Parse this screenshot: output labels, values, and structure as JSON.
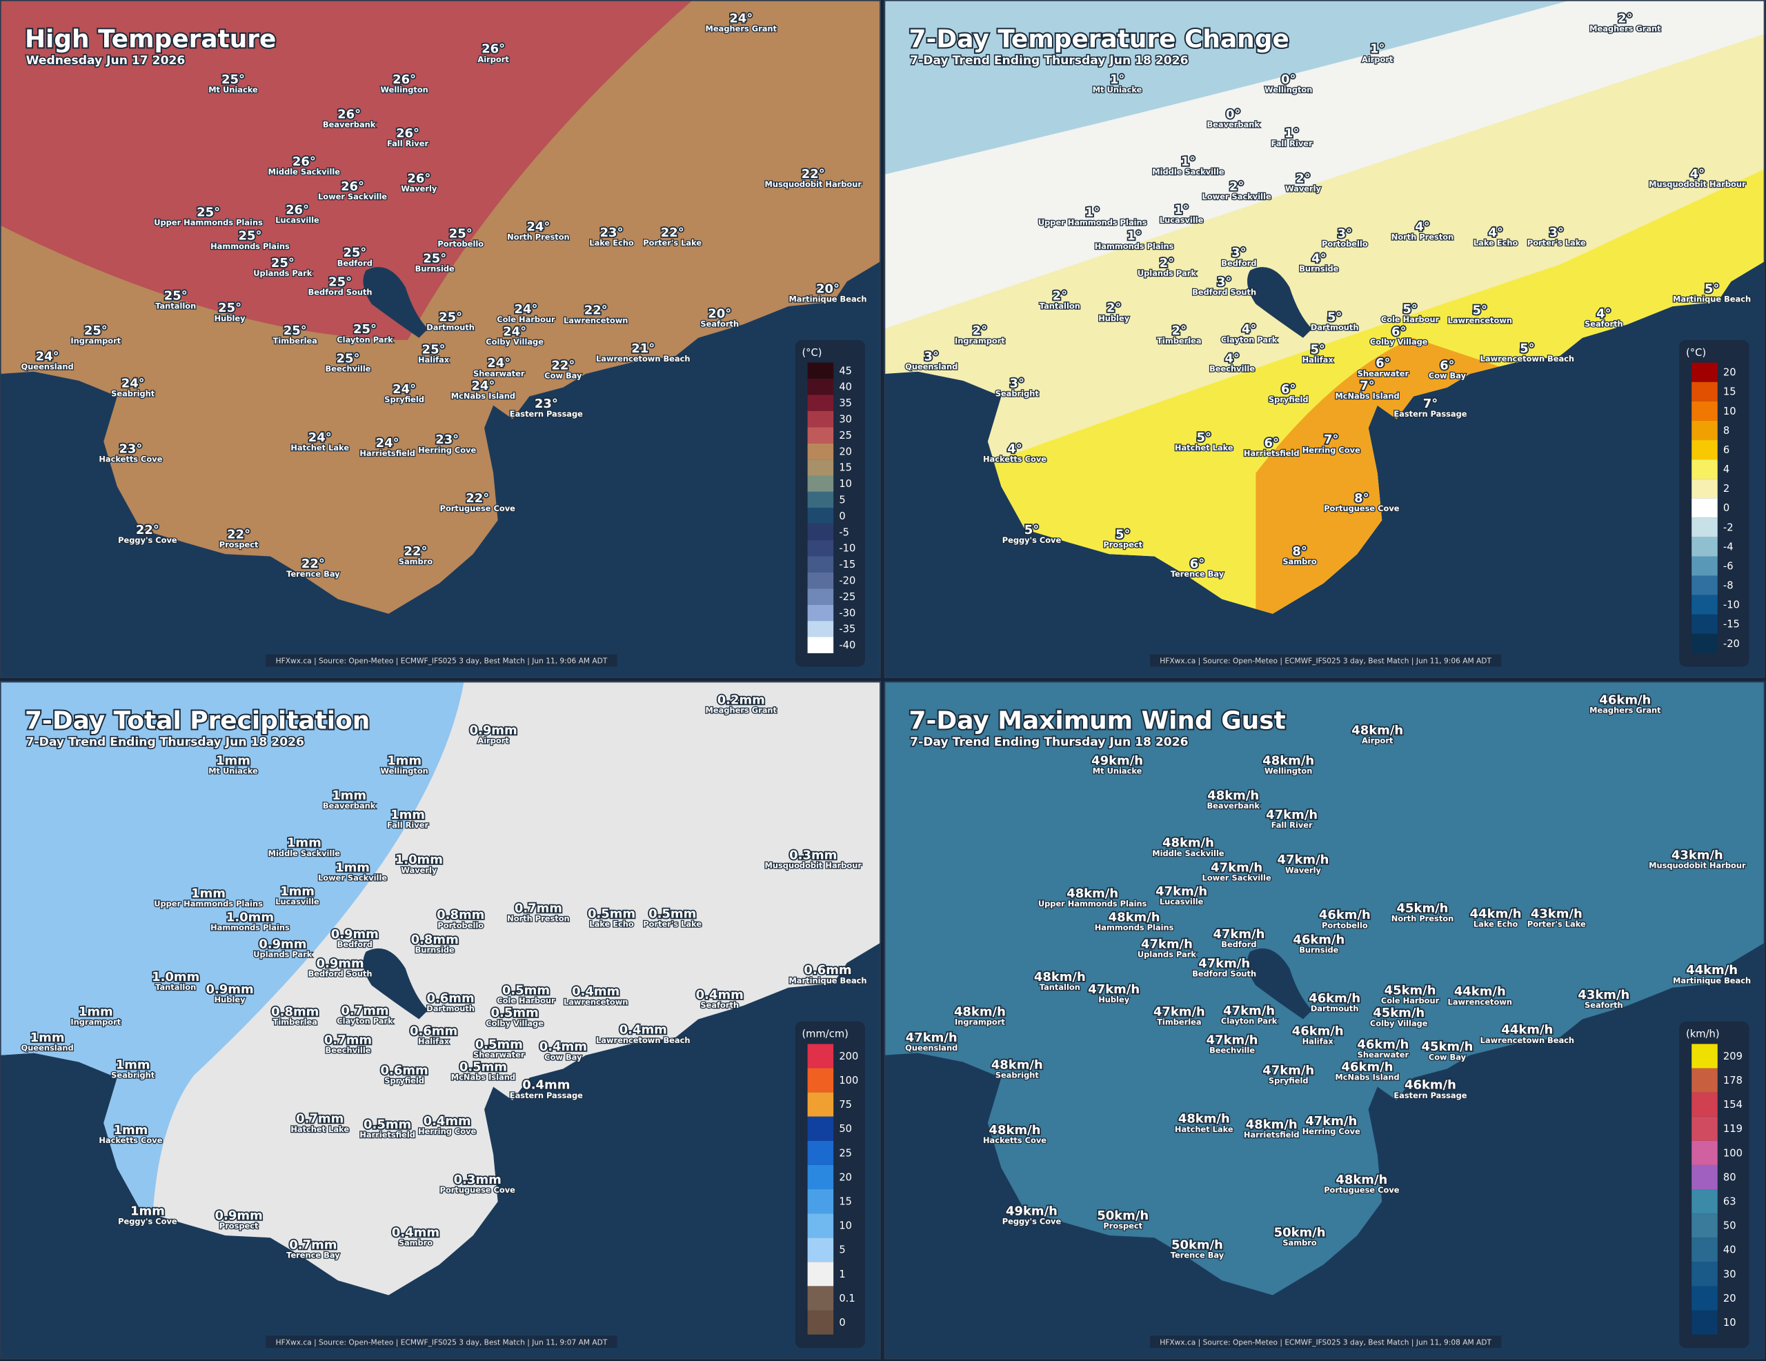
{
  "places": [
    "Meaghers Grant",
    "Airport",
    "Mt Uniacke",
    "Wellington",
    "Beaverbank",
    "Fall River",
    "Middle Sackville",
    "Waverly",
    "Lower Sackville",
    "Musquodobit Harbour",
    "Upper Hammonds Plains",
    "Lucasville",
    "Hammonds Plains",
    "Portobello",
    "North Preston",
    "Lake Echo",
    "Porter's Lake",
    "Uplands Park",
    "Bedford",
    "Burnside",
    "Bedford South",
    "Martinique Beach",
    "Tantallon",
    "Hubley",
    "Dartmouth",
    "Cole Harbour",
    "Colby Village",
    "Lawrencetown",
    "Seaforth",
    "Ingramport",
    "Timberlea",
    "Clayton Park",
    "Queensland",
    "Halifax",
    "Beechville",
    "Lawrencetown Beach",
    "Shearwater",
    "Cow Bay",
    "Seabright",
    "Spryfield",
    "McNabs Island",
    "Eastern Passage",
    "Hatchet Lake",
    "Harrietsfield",
    "Herring Cove",
    "Hacketts Cove",
    "Portuguese Cove",
    "Peggy's Cove",
    "Prospect",
    "Sambro",
    "Terence Bay"
  ],
  "panels": [
    {
      "title": "High Temperature",
      "subtitle": "Wednesday Jun 17 2026",
      "land_color": "#b8875a",
      "values": [
        "24°",
        "26°",
        "25°",
        "26°",
        "26°",
        "26°",
        "26°",
        "26°",
        "26°",
        "22°",
        "25°",
        "26°",
        "25°",
        "25°",
        "24°",
        "23°",
        "22°",
        "25°",
        "25°",
        "25°",
        "25°",
        "20°",
        "25°",
        "25°",
        "25°",
        "24°",
        "24°",
        "22°",
        "20°",
        "25°",
        "25°",
        "25°",
        "24°",
        "25°",
        "25°",
        "21°",
        "24°",
        "22°",
        "24°",
        "24°",
        "24°",
        "23°",
        "24°",
        "24°",
        "23°",
        "23°",
        "22°",
        "22°",
        "22°",
        "22°",
        "22°"
      ],
      "legend": {
        "unit": "(°C)",
        "ticks": [
          45,
          40,
          35,
          30,
          25,
          20,
          15,
          10,
          5,
          0,
          -5,
          -10,
          -15,
          -20,
          -25,
          -30,
          -35,
          -40
        ],
        "colors": [
          "#2a0a10",
          "#4a0f1e",
          "#7a1a30",
          "#a83a48",
          "#c05a5a",
          "#b8885a",
          "#a89068",
          "#7a9080",
          "#3a6a80",
          "#1e4a70",
          "#2a3a6a",
          "#34467a",
          "#445a8a",
          "#5a6e9e",
          "#7088b8",
          "#90a8d8",
          "#c0d8f0",
          "#ffffff"
        ]
      },
      "footer": "HFXwx.ca | Source: Open-Meteo | ECMWF_IFS025 3 day, Best Match | Jun 11, 9:06 AM ADT"
    },
    {
      "title": "7-Day Temperature Change",
      "subtitle": "7-Day Trend Ending Thursday Jun 18 2026",
      "land_color": "#f4eeb0",
      "values": [
        "2°",
        "1°",
        "1°",
        "0°",
        "0°",
        "1°",
        "1°",
        "2°",
        "2°",
        "4°",
        "1°",
        "1°",
        "1°",
        "3°",
        "4°",
        "4°",
        "3°",
        "2°",
        "3°",
        "4°",
        "3°",
        "5°",
        "2°",
        "2°",
        "5°",
        "5°",
        "6°",
        "5°",
        "4°",
        "2°",
        "2°",
        "4°",
        "3°",
        "5°",
        "4°",
        "5°",
        "6°",
        "6°",
        "3°",
        "6°",
        "7°",
        "7°",
        "5°",
        "6°",
        "7°",
        "4°",
        "8°",
        "5°",
        "5°",
        "8°",
        "6°"
      ],
      "legend": {
        "unit": "(°C)",
        "ticks": [
          20,
          15,
          10,
          8,
          6,
          4,
          2,
          0,
          -2,
          -4,
          -6,
          -8,
          -10,
          -15,
          -20
        ],
        "colors": [
          "#a00000",
          "#e05000",
          "#f07800",
          "#f0a000",
          "#f8c800",
          "#f8f060",
          "#f8f0b0",
          "#ffffff",
          "#c8e0e8",
          "#90c0d0",
          "#5a98b8",
          "#3070a0",
          "#105890",
          "#0a4070",
          "#0a3050"
        ]
      },
      "footer": "HFXwx.ca | Source: Open-Meteo | ECMWF_IFS025 3 day, Best Match | Jun 11, 9:06 AM ADT"
    },
    {
      "title": "7-Day Total Precipitation",
      "subtitle": "7-Day Trend Ending Thursday Jun 18 2026",
      "land_color": "#e6e6e6",
      "values": [
        "0.2mm",
        "0.9mm",
        "1mm",
        "1mm",
        "1mm",
        "1mm",
        "1mm",
        "1.0mm",
        "1mm",
        "0.3mm",
        "1mm",
        "1mm",
        "1.0mm",
        "0.8mm",
        "0.7mm",
        "0.5mm",
        "0.5mm",
        "0.9mm",
        "0.9mm",
        "0.8mm",
        "0.9mm",
        "0.6mm",
        "1.0mm",
        "0.9mm",
        "0.6mm",
        "0.5mm",
        "0.5mm",
        "0.4mm",
        "0.4mm",
        "1mm",
        "0.8mm",
        "0.7mm",
        "1mm",
        "0.6mm",
        "0.7mm",
        "0.4mm",
        "0.5mm",
        "0.4mm",
        "1mm",
        "0.6mm",
        "0.5mm",
        "0.4mm",
        "0.7mm",
        "0.5mm",
        "0.4mm",
        "1mm",
        "0.3mm",
        "1mm",
        "0.9mm",
        "0.4mm",
        "0.7mm"
      ],
      "legend": {
        "unit": "(mm/cm)",
        "ticks": [
          200,
          100,
          75,
          50,
          25,
          20,
          15,
          10,
          5,
          1,
          0.1,
          0
        ],
        "colors": [
          "#e0304a",
          "#f06020",
          "#f0a030",
          "#1040a0",
          "#1a6ad0",
          "#2a88e0",
          "#4aa0e8",
          "#70b8f0",
          "#a0d0f8",
          "#f0f0f0",
          "#786050",
          "#6a5040"
        ]
      },
      "footer": "HFXwx.ca | Source: Open-Meteo | ECMWF_IFS025 3 day, Best Match | Jun 11, 9:07 AM ADT"
    },
    {
      "title": "7-Day Maximum Wind Gust",
      "subtitle": "7-Day Trend Ending Thursday Jun 18 2026",
      "land_color": "#3a7a9a",
      "values": [
        "46km/h",
        "48km/h",
        "49km/h",
        "48km/h",
        "48km/h",
        "47km/h",
        "48km/h",
        "47km/h",
        "47km/h",
        "43km/h",
        "48km/h",
        "47km/h",
        "48km/h",
        "46km/h",
        "45km/h",
        "44km/h",
        "43km/h",
        "47km/h",
        "47km/h",
        "46km/h",
        "47km/h",
        "44km/h",
        "48km/h",
        "47km/h",
        "46km/h",
        "45km/h",
        "45km/h",
        "44km/h",
        "43km/h",
        "48km/h",
        "47km/h",
        "47km/h",
        "47km/h",
        "46km/h",
        "47km/h",
        "44km/h",
        "46km/h",
        "45km/h",
        "48km/h",
        "47km/h",
        "46km/h",
        "46km/h",
        "48km/h",
        "48km/h",
        "47km/h",
        "48km/h",
        "48km/h",
        "49km/h",
        "50km/h",
        "50km/h",
        "50km/h"
      ],
      "legend": {
        "unit": "(km/h)",
        "ticks": [
          209,
          178,
          154,
          119,
          100,
          80,
          63,
          50,
          40,
          30,
          20,
          10
        ],
        "colors": [
          "#f0e000",
          "#c86040",
          "#d04050",
          "#d04a60",
          "#d060a0",
          "#a060c0",
          "#3a8aa8",
          "#3a7a9a",
          "#2a6a90",
          "#1a5a88",
          "#0a4a80",
          "#0a3a6a"
        ]
      },
      "footer": "HFXwx.ca | Source: Open-Meteo | ECMWF_IFS025 3 day, Best Match | Jun 11, 9:08 AM ADT"
    }
  ]
}
